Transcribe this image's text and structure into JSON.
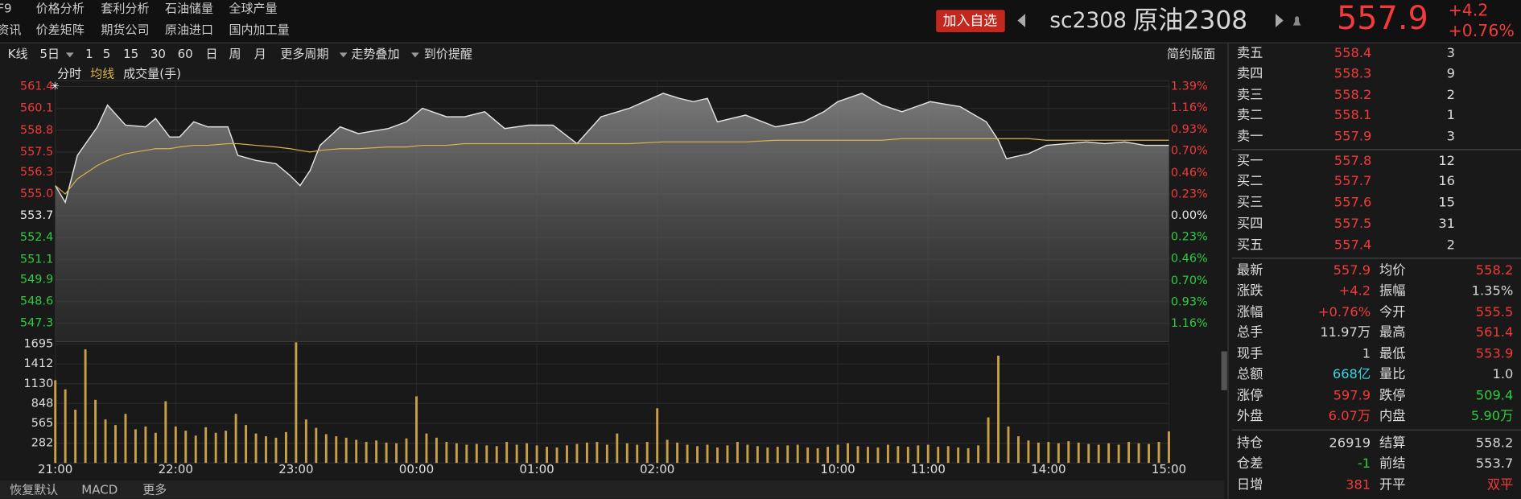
{
  "menu": {
    "row1": [
      "F9",
      "价格分析",
      "套利分析",
      "石油储量",
      "全球产量"
    ],
    "row2": [
      "资讯",
      "价差矩阵",
      "期货公司",
      "原油进口",
      "国内加工量"
    ]
  },
  "header": {
    "add_button": "加入自选",
    "code": "sc2308",
    "name": "原油2308",
    "price": "557.9",
    "change": "+4.2",
    "change_pct": "+0.76%"
  },
  "toolbar": {
    "items": [
      "K线",
      "5日",
      "1",
      "5",
      "15",
      "30",
      "60",
      "日",
      "周",
      "月",
      "更多周期",
      "走势叠加",
      "到价提醒"
    ],
    "right": "简约版面"
  },
  "chart_data": [
    {
      "type": "line",
      "x": [
        0,
        5,
        11,
        21,
        26,
        35,
        45,
        50,
        57,
        62,
        69,
        76,
        86,
        91,
        100,
        110,
        117,
        122,
        127,
        132,
        142,
        151,
        166,
        175,
        183,
        195,
        204,
        214,
        224,
        236,
        248,
        260,
        272,
        286,
        303,
        311,
        318,
        325,
        330,
        344,
        359,
        373,
        383,
        390,
        402,
        412,
        422,
        436,
        451,
        464,
        470,
        474,
        485,
        494,
        504,
        514,
        523,
        533,
        543,
        555
      ],
      "series": [
        {
          "name": "分时",
          "color": "#e2e2e2",
          "values": [
            555.5,
            554.5,
            557.3,
            559.0,
            560.3,
            559.1,
            559.0,
            559.5,
            558.4,
            558.4,
            559.3,
            559.0,
            559.0,
            557.3,
            557.0,
            556.8,
            556.1,
            555.5,
            556.4,
            557.9,
            559.0,
            558.6,
            558.9,
            559.3,
            560.1,
            559.6,
            559.6,
            559.9,
            558.9,
            559.1,
            559.1,
            558.0,
            559.6,
            560.1,
            561.0,
            560.7,
            560.5,
            560.7,
            559.3,
            559.7,
            559.0,
            559.3,
            559.9,
            560.5,
            561.0,
            560.3,
            559.9,
            560.5,
            560.2,
            559.3,
            558.2,
            557.1,
            557.4,
            557.9,
            558.0,
            558.1,
            558.0,
            558.1,
            557.9,
            557.9
          ]
        },
        {
          "name": "均线",
          "color": "#d9b44a",
          "values": [
            555.5,
            555.0,
            555.9,
            556.7,
            557.0,
            557.4,
            557.6,
            557.7,
            557.7,
            557.8,
            557.9,
            557.9,
            558.0,
            558.0,
            557.9,
            557.8,
            557.7,
            557.6,
            557.5,
            557.6,
            557.7,
            557.7,
            557.8,
            557.8,
            557.9,
            557.9,
            558.0,
            558.0,
            558.0,
            558.0,
            558.0,
            558.0,
            558.0,
            558.0,
            558.1,
            558.1,
            558.1,
            558.1,
            558.1,
            558.1,
            558.2,
            558.2,
            558.2,
            558.2,
            558.2,
            558.2,
            558.3,
            558.3,
            558.3,
            558.3,
            558.3,
            558.3,
            558.3,
            558.2,
            558.2,
            558.2,
            558.2,
            558.2,
            558.2,
            558.2
          ]
        }
      ],
      "xlim": [
        0,
        555
      ],
      "xticks": [
        {
          "value": 0,
          "label": "21:00"
        },
        {
          "value": 60,
          "label": "22:00"
        },
        {
          "value": 120,
          "label": "23:00"
        },
        {
          "value": 180,
          "label": "00:00"
        },
        {
          "value": 240,
          "label": "01:00"
        },
        {
          "value": 300,
          "label": "02:00"
        },
        {
          "value": 390,
          "label": "10:00"
        },
        {
          "value": 435,
          "label": "11:00"
        },
        {
          "value": 495,
          "label": "14:00"
        },
        {
          "value": 555,
          "label": "15:00"
        }
      ],
      "ylim": [
        546.2,
        561.75
      ],
      "yticks": [
        561.4,
        560.1,
        558.8,
        557.5,
        556.3,
        {
          "value": 555,
          "label": "555.0"
        },
        553.7,
        552.4,
        551.1,
        549.9,
        548.6,
        547.3
      ],
      "y2lim": [
        -1.354,
        1.454
      ],
      "y2ticks": [
        {
          "value": 1.39,
          "label": "1.39%"
        },
        {
          "value": 1.16,
          "label": "1.16%"
        },
        {
          "value": 0.93,
          "label": "0.93%"
        },
        {
          "value": 0.7,
          "label": "0.70%"
        },
        {
          "value": 0.46,
          "label": "0.46%"
        },
        {
          "value": 0.23,
          "label": "0.23%"
        },
        {
          "value": 0,
          "label": "0.00%"
        },
        {
          "value": -0.23,
          "label": "0.23%"
        },
        {
          "value": -0.46,
          "label": "0.46%"
        },
        {
          "value": -0.7,
          "label": "0.70%"
        },
        {
          "value": -0.93,
          "label": "0.93%"
        },
        {
          "value": -1.16,
          "label": "1.16%"
        }
      ],
      "grid": true,
      "up_color": "#f23a3a",
      "down_color": "#2ecc40"
    },
    {
      "type": "bar",
      "title": "成交量(手)",
      "color": "#c9a045",
      "x": [
        0,
        5,
        10,
        15,
        20,
        25,
        30,
        35,
        40,
        45,
        50,
        55,
        60,
        65,
        70,
        75,
        80,
        85,
        90,
        95,
        100,
        105,
        110,
        115,
        120,
        125,
        130,
        135,
        140,
        145,
        150,
        155,
        160,
        165,
        170,
        175,
        180,
        185,
        190,
        195,
        200,
        205,
        210,
        215,
        220,
        225,
        230,
        235,
        240,
        245,
        250,
        255,
        260,
        265,
        270,
        275,
        280,
        285,
        290,
        295,
        300,
        305,
        310,
        315,
        320,
        325,
        330,
        335,
        340,
        345,
        350,
        355,
        360,
        365,
        370,
        375,
        380,
        385,
        390,
        395,
        400,
        405,
        410,
        415,
        420,
        425,
        430,
        435,
        440,
        445,
        450,
        455,
        460,
        465,
        470,
        475,
        480,
        485,
        490,
        495,
        500,
        505,
        510,
        515,
        520,
        525,
        530,
        535,
        540,
        545,
        550,
        555
      ],
      "values": [
        1180,
        1050,
        760,
        1620,
        900,
        620,
        540,
        700,
        480,
        520,
        430,
        880,
        520,
        460,
        390,
        510,
        430,
        460,
        700,
        540,
        420,
        380,
        360,
        440,
        1720,
        620,
        500,
        410,
        380,
        360,
        330,
        300,
        320,
        290,
        280,
        350,
        950,
        420,
        360,
        300,
        280,
        260,
        270,
        250,
        240,
        300,
        260,
        280,
        250,
        230,
        220,
        250,
        270,
        290,
        300,
        260,
        420,
        280,
        260,
        300,
        780,
        330,
        290,
        260,
        240,
        260,
        220,
        250,
        300,
        260,
        240,
        220,
        230,
        250,
        260,
        220,
        210,
        230,
        260,
        280,
        240,
        230,
        220,
        260,
        240,
        230,
        250,
        260,
        230,
        240,
        220,
        210,
        250,
        650,
        1530,
        520,
        380,
        320,
        290,
        300,
        280,
        310,
        290,
        270,
        260,
        280,
        260,
        300,
        280,
        270,
        300,
        450
      ],
      "xlim": [
        0,
        555
      ],
      "ylim": [
        0,
        1730
      ],
      "yticks": [
        282,
        565,
        848,
        1130,
        1412,
        1695
      ]
    }
  ],
  "order_book": {
    "asks": [
      {
        "label": "卖五",
        "price": 558.4,
        "volume": 3
      },
      {
        "label": "卖四",
        "price": 558.3,
        "volume": 9
      },
      {
        "label": "卖三",
        "price": 558.2,
        "volume": 2
      },
      {
        "label": "卖二",
        "price": 558.1,
        "volume": 1
      },
      {
        "label": "卖一",
        "price": 557.9,
        "volume": 3
      }
    ],
    "bids": [
      {
        "label": "买一",
        "price": 557.8,
        "volume": 12
      },
      {
        "label": "买二",
        "price": 557.7,
        "volume": 16
      },
      {
        "label": "买三",
        "price": 557.6,
        "volume": 15
      },
      {
        "label": "买四",
        "price": 557.5,
        "volume": 31
      },
      {
        "label": "买五",
        "price": 557.4,
        "volume": 2
      }
    ]
  },
  "quote": [
    [
      {
        "label": "最新",
        "value": "557.9",
        "color": "#f23a3a"
      },
      {
        "label": "均价",
        "value": "558.2",
        "color": "#f23a3a"
      }
    ],
    [
      {
        "label": "涨跌",
        "value": "+4.2",
        "color": "#f23a3a"
      },
      {
        "label": "振幅",
        "value": "1.35%",
        "color": "#d6d6d6"
      }
    ],
    [
      {
        "label": "涨幅",
        "value": "+0.76%",
        "color": "#f23a3a"
      },
      {
        "label": "今开",
        "value": "555.5",
        "color": "#f23a3a"
      }
    ],
    [
      {
        "label": "总手",
        "value": "11.97万",
        "color": "#d6d6d6"
      },
      {
        "label": "最高",
        "value": "561.4",
        "color": "#f23a3a"
      }
    ],
    [
      {
        "label": "现手",
        "value": "1",
        "color": "#d6d6d6"
      },
      {
        "label": "最低",
        "value": "553.9",
        "color": "#f23a3a"
      }
    ],
    [
      {
        "label": "总额",
        "value": "668亿",
        "color": "#3bd3e0"
      },
      {
        "label": "量比",
        "value": "1.0",
        "color": "#d6d6d6"
      }
    ],
    [
      {
        "label": "涨停",
        "value": "597.9",
        "color": "#f23a3a"
      },
      {
        "label": "跌停",
        "value": "509.4",
        "color": "#2ecc40"
      }
    ],
    [
      {
        "label": "外盘",
        "value": "6.07万",
        "color": "#f23a3a"
      },
      {
        "label": "内盘",
        "value": "5.90万",
        "color": "#2ecc40"
      }
    ]
  ],
  "position": [
    [
      {
        "label": "持仓",
        "value": "26919",
        "color": "#d6d6d6"
      },
      {
        "label": "结算",
        "value": "558.2",
        "color": "#d6d6d6"
      }
    ],
    [
      {
        "label": "仓差",
        "value": "-1",
        "color": "#2ecc40"
      },
      {
        "label": "前结",
        "value": "553.7",
        "color": "#d6d6d6"
      }
    ],
    [
      {
        "label": "日增",
        "value": "381",
        "color": "#f23a3a"
      },
      {
        "label": "开平",
        "value": "双平",
        "color": "#f23a3a"
      }
    ]
  ],
  "bottom_tabs": [
    "恢复默认",
    "MACD",
    "更多"
  ]
}
